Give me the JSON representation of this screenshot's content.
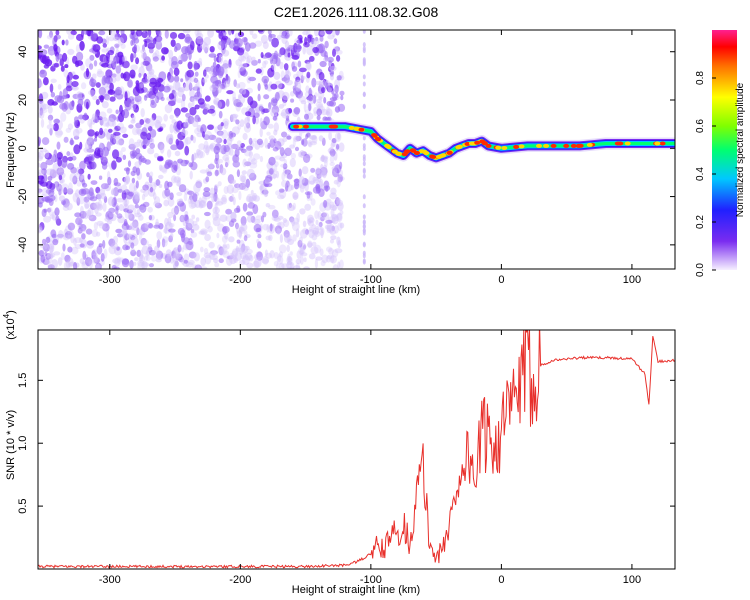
{
  "title": "C2E1.2026.111.08.32.G08",
  "chart_data": [
    {
      "type": "heatmap",
      "xlabel": "Height of straight line (km)",
      "ylabel": "Frequency (Hz)",
      "xlim": [
        -355,
        133
      ],
      "ylim": [
        -50,
        49
      ],
      "x_ticks": [
        -300,
        -200,
        -100,
        0,
        100
      ],
      "y_ticks": [
        -40,
        -20,
        0,
        20,
        40
      ],
      "colorbar": {
        "label": "Normalized spectral amplitude",
        "range": [
          0,
          1
        ],
        "ticks": [
          0,
          0.2,
          0.4,
          0.6,
          0.8
        ]
      },
      "ridge": {
        "x": [
          -160,
          -140,
          -120,
          -110,
          -100,
          -95,
          -90,
          -85,
          -80,
          -75,
          -70,
          -65,
          -60,
          -55,
          -50,
          -45,
          -40,
          -35,
          -30,
          -25,
          -20,
          -15,
          -10,
          0,
          20,
          40,
          60,
          80,
          100,
          133
        ],
        "y": [
          9,
          9,
          9,
          8,
          7,
          4,
          2,
          0,
          -2,
          -3,
          0,
          -2,
          -1,
          -3,
          -4,
          -3,
          -2,
          0,
          1,
          2,
          2,
          3,
          1,
          0,
          1,
          1,
          1,
          2,
          2,
          2
        ]
      },
      "grid": false
    },
    {
      "type": "line",
      "xlabel": "Height of straight line (km)",
      "ylabel": "SNR (10 * v/v)",
      "y_multiplier": "(x10",
      "y_multiplier_exp": "4",
      "y_multiplier_close": ")",
      "xlim": [
        -355,
        133
      ],
      "ylim": [
        0,
        1.9
      ],
      "x_ticks": [
        -300,
        -200,
        -100,
        0,
        100
      ],
      "y_ticks": [
        0.5,
        1.0,
        1.5
      ],
      "series": [
        {
          "color": "#e8302b",
          "x": [
            -355,
            -300,
            -250,
            -200,
            -150,
            -120,
            -110,
            -100,
            -95,
            -90,
            -85,
            -80,
            -75,
            -70,
            -65,
            -60,
            -55,
            -50,
            -45,
            -40,
            -35,
            -30,
            -25,
            -20,
            -15,
            -10,
            -5,
            0,
            5,
            10,
            15,
            20,
            30,
            40,
            60,
            80,
            100,
            110,
            113,
            116,
            120,
            133
          ],
          "y": [
            0.02,
            0.02,
            0.02,
            0.02,
            0.02,
            0.03,
            0.06,
            0.12,
            0.18,
            0.15,
            0.25,
            0.3,
            0.35,
            0.2,
            0.6,
            0.8,
            0.2,
            0.1,
            0.15,
            0.35,
            0.6,
            0.85,
            0.9,
            0.75,
            1.05,
            1.1,
            1.0,
            1.1,
            1.2,
            1.35,
            1.45,
            1.55,
            1.62,
            1.66,
            1.68,
            1.68,
            1.67,
            1.55,
            1.3,
            1.85,
            1.65,
            1.66
          ]
        }
      ],
      "grid": false
    }
  ]
}
